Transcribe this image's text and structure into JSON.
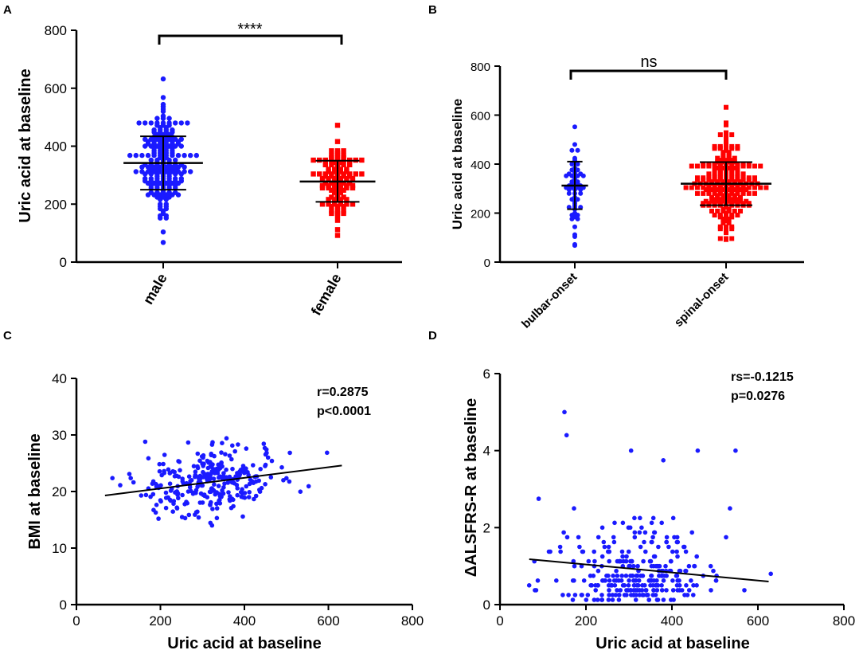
{
  "colors": {
    "male": "#1a1aff",
    "female": "#ff0000",
    "axis": "#000000"
  },
  "chart_data": [
    {
      "panel": "A",
      "type": "scatter",
      "subtype": "dot-plot with mean and SD",
      "ylabel": "Uric acid at baseline",
      "categories": [
        "male",
        "female"
      ],
      "ylim": [
        0,
        800
      ],
      "yticks": [
        0,
        200,
        400,
        600,
        800
      ],
      "series": [
        {
          "name": "male",
          "marker": "circle",
          "color": "#1a1aff",
          "n": 200,
          "mean": 342,
          "sd_low": 250,
          "sd_high": 434,
          "min": 68,
          "max": 632
        },
        {
          "name": "female",
          "marker": "square",
          "color": "#ff0000",
          "n": 110,
          "mean": 278,
          "sd_low": 208,
          "sd_high": 350,
          "min": 92,
          "max": 472
        }
      ],
      "comparison": {
        "label": "****",
        "between": [
          "male",
          "female"
        ]
      }
    },
    {
      "panel": "B",
      "type": "scatter",
      "subtype": "dot-plot with mean and SD",
      "ylabel": "Uric acid at baseline",
      "categories": [
        "bulbar-onset",
        "spinal-onset"
      ],
      "ylim": [
        0,
        800
      ],
      "yticks": [
        0,
        200,
        400,
        600,
        800
      ],
      "series": [
        {
          "name": "bulbar-onset",
          "marker": "circle",
          "color": "#1a1aff",
          "n": 60,
          "mean": 312,
          "sd_low": 216,
          "sd_high": 410,
          "min": 68,
          "max": 552
        },
        {
          "name": "spinal-onset",
          "marker": "square",
          "color": "#ff0000",
          "n": 250,
          "mean": 320,
          "sd_low": 232,
          "sd_high": 408,
          "min": 92,
          "max": 632
        }
      ],
      "comparison": {
        "label": "ns",
        "between": [
          "bulbar-onset",
          "spinal-onset"
        ]
      }
    },
    {
      "panel": "C",
      "type": "scatter",
      "xlabel": "Uric acid at baseline",
      "ylabel": "BMI at baseline",
      "xlim": [
        0,
        800
      ],
      "ylim": [
        0,
        40
      ],
      "xticks": [
        0,
        200,
        400,
        600,
        800
      ],
      "yticks": [
        0,
        10,
        20,
        30,
        40
      ],
      "n": 300,
      "x_mean": 315,
      "x_sd": 85,
      "y_mean": 21.5,
      "y_sd": 2.8,
      "fit_line": {
        "x": [
          68,
          632
        ],
        "y": [
          19.3,
          24.6
        ]
      },
      "annotation": [
        "r=0.2875",
        "p<0.0001"
      ]
    },
    {
      "panel": "D",
      "type": "scatter",
      "xlabel": "Uric acid at baseline",
      "ylabel": "ΔALSFRS-R at baseline",
      "xlim": [
        0,
        800
      ],
      "ylim": [
        0,
        6
      ],
      "xticks": [
        0,
        200,
        400,
        600,
        800
      ],
      "yticks": [
        0,
        2,
        4,
        6
      ],
      "n": 300,
      "x_mean": 315,
      "x_sd": 85,
      "y_median": 0.8,
      "fit_line": {
        "x": [
          68,
          625
        ],
        "y": [
          1.18,
          0.6
        ]
      },
      "annotation": [
        "rs=-0.1215",
        "p=0.0276"
      ],
      "notable_points": [
        {
          "x": 150,
          "y": 5.0
        },
        {
          "x": 155,
          "y": 4.4
        },
        {
          "x": 305,
          "y": 4.0
        },
        {
          "x": 460,
          "y": 4.0
        },
        {
          "x": 548,
          "y": 4.0
        },
        {
          "x": 380,
          "y": 3.75
        },
        {
          "x": 90,
          "y": 2.75
        },
        {
          "x": 535,
          "y": 2.5
        },
        {
          "x": 630,
          "y": 0.8
        },
        {
          "x": 68,
          "y": 0.5
        }
      ]
    }
  ]
}
